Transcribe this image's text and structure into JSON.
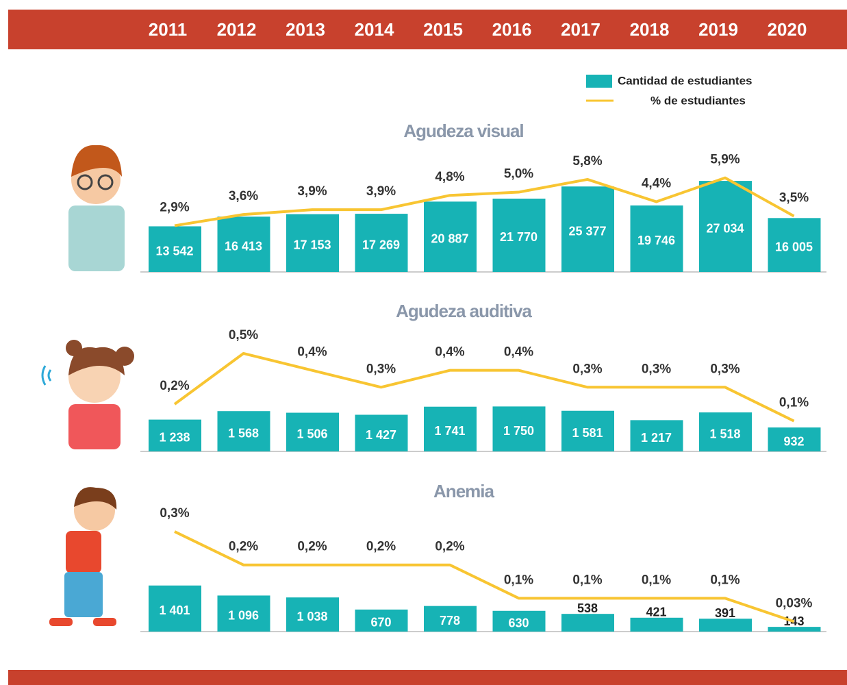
{
  "chart_data": [
    {
      "type": "bar",
      "title": "Agudeza visual",
      "categories": [
        "2011",
        "2012",
        "2013",
        "2014",
        "2015",
        "2016",
        "2017",
        "2018",
        "2019",
        "2020"
      ],
      "ylim": [
        0,
        36000
      ],
      "y2lim": [
        0,
        7.6
      ],
      "series": [
        {
          "name": "Cantidad de estudiantes",
          "color": "#17b3b5",
          "values": [
            13542,
            16413,
            17153,
            17269,
            20887,
            21770,
            25377,
            19746,
            27034,
            16005
          ],
          "value_labels": [
            "13 542",
            "16 413",
            "17 153",
            "17 269",
            "20 887",
            "21 770",
            "25 377",
            "19 746",
            "27 034",
            "16 005"
          ]
        },
        {
          "name": "% de estudiantes",
          "color": "#f8c532",
          "axis": "y2",
          "values": [
            2.9,
            3.6,
            3.9,
            3.9,
            4.8,
            5.0,
            5.8,
            4.4,
            5.9,
            3.5
          ],
          "value_labels": [
            "2,9%",
            "3,6%",
            "3,9%",
            "3,9%",
            "4,8%",
            "5,0%",
            "5,8%",
            "4,4%",
            "5,9%",
            "3,5%"
          ]
        }
      ]
    },
    {
      "type": "bar",
      "title": "Agudeza auditiva",
      "ylim": [
        0,
        4800
      ],
      "y2lim": [
        -0.08,
        0.65
      ],
      "series": [
        {
          "color": "#17b3b5",
          "values": [
            1238,
            1568,
            1506,
            1427,
            1741,
            1750,
            1581,
            1217,
            1518,
            932
          ],
          "value_labels": [
            "1 238",
            "1 568",
            "1 506",
            "1 427",
            "1 741",
            "1 750",
            "1 581",
            "1 217",
            "1 518",
            "932"
          ]
        },
        {
          "color": "#f8c532",
          "axis": "y2",
          "values": [
            0.2,
            0.5,
            0.4,
            0.3,
            0.4,
            0.4,
            0.3,
            0.3,
            0.3,
            0.1
          ],
          "value_labels": [
            "0,2%",
            "0,5%",
            "0,4%",
            "0,3%",
            "0,4%",
            "0,4%",
            "0,3%",
            "0,3%",
            "0,3%",
            "0,1%"
          ]
        }
      ]
    },
    {
      "type": "bar",
      "title": "Anemia",
      "ylim": [
        0,
        3750
      ],
      "y2lim": [
        0,
        0.37
      ],
      "series": [
        {
          "color": "#17b3b5",
          "values": [
            1401,
            1096,
            1038,
            670,
            778,
            630,
            538,
            421,
            391,
            143
          ],
          "value_labels": [
            "1 401",
            "1 096",
            "1 038",
            "670",
            "778",
            "630",
            "538",
            "421",
            "391",
            "143"
          ]
        },
        {
          "color": "#f8c532",
          "axis": "y2",
          "values": [
            0.3,
            0.2,
            0.2,
            0.2,
            0.2,
            0.1,
            0.1,
            0.1,
            0.1,
            0.03
          ],
          "value_labels": [
            "0,3%",
            "0,2%",
            "0,2%",
            "0,2%",
            "0,2%",
            "0,1%",
            "0,1%",
            "0,1%",
            "0,1%",
            "0,03%"
          ]
        }
      ]
    }
  ]
}
